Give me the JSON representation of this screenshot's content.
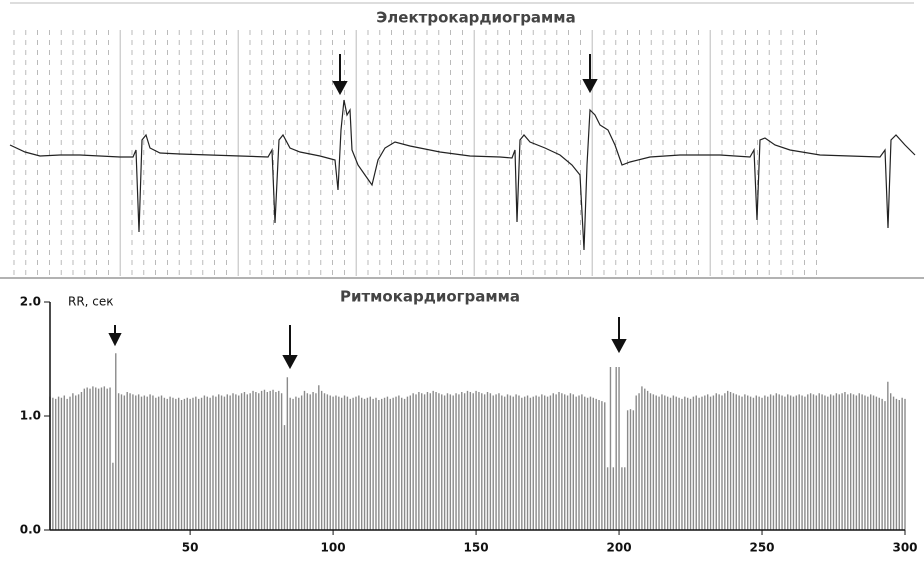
{
  "chart_data": [
    {
      "type": "line",
      "title": "Электрокардиограмма",
      "color": "#222222",
      "x": [
        10,
        25,
        40,
        60,
        80,
        100,
        120,
        133,
        136,
        139,
        142,
        146,
        150,
        160,
        180,
        210,
        240,
        268,
        272,
        275,
        279,
        283,
        290,
        300,
        320,
        335,
        338,
        341,
        344,
        347,
        350,
        352,
        358,
        365,
        372,
        378,
        385,
        395,
        410,
        440,
        470,
        500,
        512,
        515,
        517,
        520,
        524,
        530,
        545,
        560,
        572,
        580,
        584,
        587,
        590,
        595,
        600,
        608,
        615,
        622,
        630,
        650,
        680,
        720,
        750,
        754,
        757,
        760,
        765,
        775,
        790,
        820,
        850,
        880,
        885,
        888,
        891,
        896,
        905,
        915
      ],
      "values": [
        10,
        3,
        -1,
        0,
        0,
        -1,
        -2,
        -2,
        5,
        -77,
        15,
        20,
        7,
        2,
        1,
        0,
        -1,
        -2,
        5,
        -68,
        15,
        20,
        7,
        3,
        -1,
        -5,
        -35,
        25,
        55,
        40,
        45,
        5,
        -10,
        -20,
        -30,
        -5,
        7,
        13,
        9,
        3,
        -1,
        -2,
        -3,
        5,
        -67,
        15,
        20,
        13,
        7,
        0,
        -10,
        -20,
        -95,
        -10,
        45,
        40,
        30,
        25,
        10,
        -10,
        -7,
        -2,
        0,
        0,
        -2,
        5,
        -65,
        15,
        17,
        10,
        5,
        0,
        -1,
        -2,
        5,
        -73,
        15,
        20,
        10,
        0
      ]
    },
    {
      "type": "bar",
      "title": "Ритмокардиограмма",
      "y_label": "RR, сек",
      "color": "#8a8a8a",
      "xlim": [
        1,
        300
      ],
      "xticks": [
        50,
        100,
        150,
        200,
        250,
        300
      ],
      "ylim": [
        0,
        2
      ],
      "yticks": [
        {
          "value": 0,
          "label": "0.0"
        },
        {
          "value": 1,
          "label": "1.0"
        },
        {
          "value": 2,
          "label": "2.0"
        }
      ],
      "x": [
        1,
        2,
        3,
        4,
        5,
        6,
        7,
        8,
        9,
        10,
        11,
        12,
        13,
        14,
        15,
        16,
        17,
        18,
        19,
        20,
        21,
        22,
        23,
        24,
        25,
        26,
        27,
        28,
        29,
        30,
        31,
        32,
        33,
        34,
        35,
        36,
        37,
        38,
        39,
        40,
        41,
        42,
        43,
        44,
        45,
        46,
        47,
        48,
        49,
        50,
        51,
        52,
        53,
        54,
        55,
        56,
        57,
        58,
        59,
        60,
        61,
        62,
        63,
        64,
        65,
        66,
        67,
        68,
        69,
        70,
        71,
        72,
        73,
        74,
        75,
        76,
        77,
        78,
        79,
        80,
        81,
        82,
        83,
        84,
        85,
        86,
        87,
        88,
        89,
        90,
        91,
        92,
        93,
        94,
        95,
        96,
        97,
        98,
        99,
        100,
        101,
        102,
        103,
        104,
        105,
        106,
        107,
        108,
        109,
        110,
        111,
        112,
        113,
        114,
        115,
        116,
        117,
        118,
        119,
        120,
        121,
        122,
        123,
        124,
        125,
        126,
        127,
        128,
        129,
        130,
        131,
        132,
        133,
        134,
        135,
        136,
        137,
        138,
        139,
        140,
        141,
        142,
        143,
        144,
        145,
        146,
        147,
        148,
        149,
        150,
        151,
        152,
        153,
        154,
        155,
        156,
        157,
        158,
        159,
        160,
        161,
        162,
        163,
        164,
        165,
        166,
        167,
        168,
        169,
        170,
        171,
        172,
        173,
        174,
        175,
        176,
        177,
        178,
        179,
        180,
        181,
        182,
        183,
        184,
        185,
        186,
        187,
        188,
        189,
        190,
        191,
        192,
        193,
        194,
        195,
        196,
        197,
        198,
        199,
        200,
        201,
        202,
        203,
        204,
        205,
        206,
        207,
        208,
        209,
        210,
        211,
        212,
        213,
        214,
        215,
        216,
        217,
        218,
        219,
        220,
        221,
        222,
        223,
        224,
        225,
        226,
        227,
        228,
        229,
        230,
        231,
        232,
        233,
        234,
        235,
        236,
        237,
        238,
        239,
        240,
        241,
        242,
        243,
        244,
        245,
        246,
        247,
        248,
        249,
        250,
        251,
        252,
        253,
        254,
        255,
        256,
        257,
        258,
        259,
        260,
        261,
        262,
        263,
        264,
        265,
        266,
        267,
        268,
        269,
        270,
        271,
        272,
        273,
        274,
        275,
        276,
        277,
        278,
        279,
        280,
        281,
        282,
        283,
        284,
        285,
        286,
        287,
        288,
        289,
        290,
        291,
        292,
        293,
        294,
        295,
        296,
        297,
        298,
        299,
        300
      ],
      "values": [
        1.17,
        1.16,
        1.15,
        1.17,
        1.16,
        1.18,
        1.15,
        1.17,
        1.2,
        1.18,
        1.19,
        1.21,
        1.24,
        1.25,
        1.24,
        1.26,
        1.25,
        1.24,
        1.25,
        1.26,
        1.24,
        1.25,
        0.59,
        1.55,
        1.2,
        1.19,
        1.18,
        1.21,
        1.2,
        1.19,
        1.18,
        1.19,
        1.17,
        1.18,
        1.17,
        1.19,
        1.18,
        1.16,
        1.17,
        1.18,
        1.16,
        1.15,
        1.17,
        1.16,
        1.15,
        1.16,
        1.14,
        1.15,
        1.16,
        1.15,
        1.16,
        1.17,
        1.15,
        1.16,
        1.18,
        1.17,
        1.16,
        1.18,
        1.17,
        1.19,
        1.18,
        1.17,
        1.19,
        1.18,
        1.2,
        1.19,
        1.18,
        1.2,
        1.21,
        1.19,
        1.2,
        1.22,
        1.21,
        1.2,
        1.22,
        1.23,
        1.21,
        1.22,
        1.23,
        1.21,
        1.22,
        1.2,
        0.92,
        1.34,
        1.16,
        1.15,
        1.17,
        1.16,
        1.18,
        1.22,
        1.2,
        1.19,
        1.21,
        1.2,
        1.27,
        1.22,
        1.2,
        1.19,
        1.18,
        1.17,
        1.18,
        1.17,
        1.16,
        1.18,
        1.17,
        1.15,
        1.16,
        1.17,
        1.18,
        1.16,
        1.15,
        1.16,
        1.17,
        1.15,
        1.16,
        1.14,
        1.15,
        1.16,
        1.17,
        1.15,
        1.16,
        1.17,
        1.18,
        1.16,
        1.15,
        1.17,
        1.18,
        1.2,
        1.19,
        1.21,
        1.2,
        1.19,
        1.21,
        1.2,
        1.22,
        1.21,
        1.2,
        1.19,
        1.18,
        1.2,
        1.19,
        1.18,
        1.2,
        1.19,
        1.21,
        1.2,
        1.22,
        1.21,
        1.2,
        1.22,
        1.21,
        1.2,
        1.19,
        1.21,
        1.2,
        1.18,
        1.19,
        1.2,
        1.18,
        1.17,
        1.19,
        1.18,
        1.17,
        1.19,
        1.18,
        1.16,
        1.17,
        1.18,
        1.16,
        1.17,
        1.18,
        1.17,
        1.19,
        1.18,
        1.17,
        1.18,
        1.2,
        1.19,
        1.21,
        1.2,
        1.19,
        1.18,
        1.2,
        1.19,
        1.17,
        1.18,
        1.19,
        1.17,
        1.16,
        1.17,
        1.16,
        1.15,
        1.14,
        1.13,
        1.12,
        0.55,
        1.43,
        0.55,
        1.43,
        1.43,
        0.55,
        0.55,
        1.05,
        1.06,
        1.05,
        1.18,
        1.2,
        1.26,
        1.24,
        1.22,
        1.2,
        1.19,
        1.18,
        1.17,
        1.19,
        1.18,
        1.17,
        1.16,
        1.18,
        1.17,
        1.16,
        1.15,
        1.17,
        1.16,
        1.15,
        1.17,
        1.18,
        1.16,
        1.17,
        1.18,
        1.19,
        1.17,
        1.18,
        1.2,
        1.19,
        1.18,
        1.2,
        1.22,
        1.21,
        1.2,
        1.19,
        1.18,
        1.17,
        1.19,
        1.18,
        1.17,
        1.16,
        1.18,
        1.17,
        1.16,
        1.18,
        1.17,
        1.19,
        1.18,
        1.2,
        1.19,
        1.18,
        1.17,
        1.19,
        1.18,
        1.17,
        1.18,
        1.19,
        1.18,
        1.17,
        1.19,
        1.2,
        1.19,
        1.18,
        1.2,
        1.19,
        1.18,
        1.17,
        1.19,
        1.18,
        1.2,
        1.19,
        1.2,
        1.21,
        1.19,
        1.2,
        1.19,
        1.18,
        1.2,
        1.19,
        1.18,
        1.17,
        1.19,
        1.18,
        1.17,
        1.16,
        1.15,
        1.13,
        1.3,
        1.2,
        1.17,
        1.15,
        1.14,
        1.16,
        1.15
      ]
    }
  ]
}
